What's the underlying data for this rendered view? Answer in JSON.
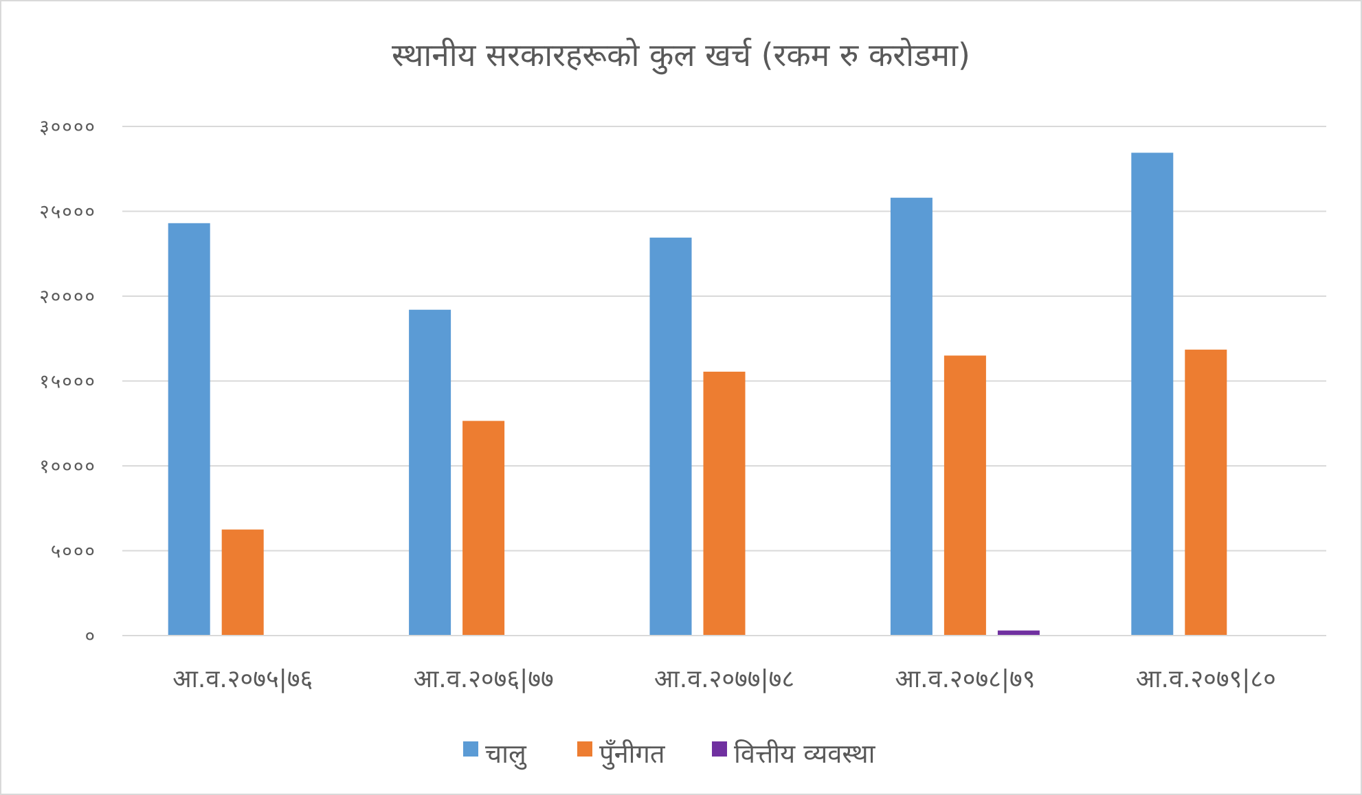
{
  "chart_data": {
    "type": "bar",
    "title": "स्थानीय सरकारहरूको कुल खर्च (रकम रु करोडमा)",
    "xlabel": "",
    "ylabel": "",
    "ylim": [
      0,
      30000
    ],
    "yticks": [
      0,
      5000,
      10000,
      15000,
      20000,
      25000,
      30000
    ],
    "ytick_labels": [
      "०",
      "५०००",
      "१००००",
      "१५०००",
      "२००००",
      "२५०००",
      "३००००"
    ],
    "categories": [
      "आ.व.२०७५|७६",
      "आ.व.२०७६|७७",
      "आ.व.२०७७|७८",
      "आ.व.२०७८|७९",
      "आ.व.२०७९|८०"
    ],
    "series": [
      {
        "name": "चालु",
        "color": "#5b9bd5",
        "values": [
          24300,
          19200,
          23450,
          25800,
          28450
        ]
      },
      {
        "name": "पुँनीगत",
        "color": "#ed7d31",
        "values": [
          6250,
          12650,
          15550,
          16500,
          16850
        ]
      },
      {
        "name": "वित्तीय व्यवस्था",
        "color": "#7030a0",
        "values": [
          0,
          0,
          0,
          300,
          0
        ]
      }
    ],
    "grid": true,
    "legend_position": "bottom"
  }
}
